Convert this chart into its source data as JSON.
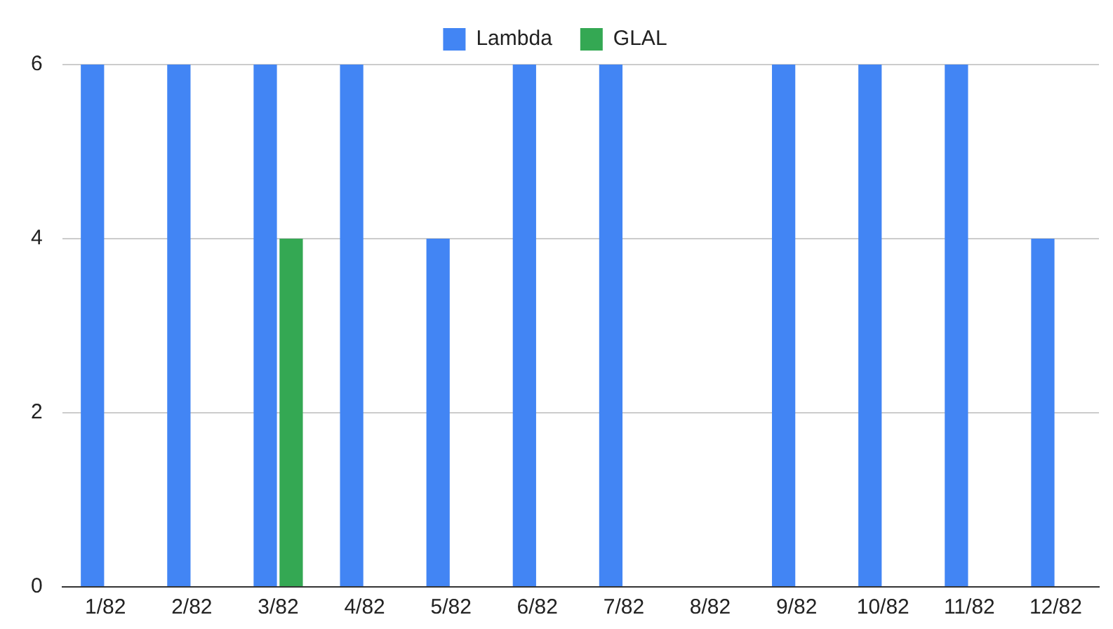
{
  "chart_data": {
    "type": "bar",
    "categories": [
      "1/82",
      "2/82",
      "3/82",
      "4/82",
      "5/82",
      "6/82",
      "7/82",
      "8/82",
      "9/82",
      "10/82",
      "11/82",
      "12/82"
    ],
    "series": [
      {
        "name": "Lambda",
        "color": "#4285f4",
        "values": [
          6,
          6,
          6,
          6,
          4,
          6,
          6,
          null,
          6,
          6,
          6,
          4
        ]
      },
      {
        "name": "GLAL",
        "color": "#34a853",
        "values": [
          null,
          null,
          4,
          null,
          null,
          null,
          null,
          null,
          null,
          null,
          null,
          null
        ]
      }
    ],
    "ylim": [
      0,
      6
    ],
    "yticks": [
      0,
      2,
      4,
      6
    ],
    "grid": "y",
    "legend": "top"
  }
}
